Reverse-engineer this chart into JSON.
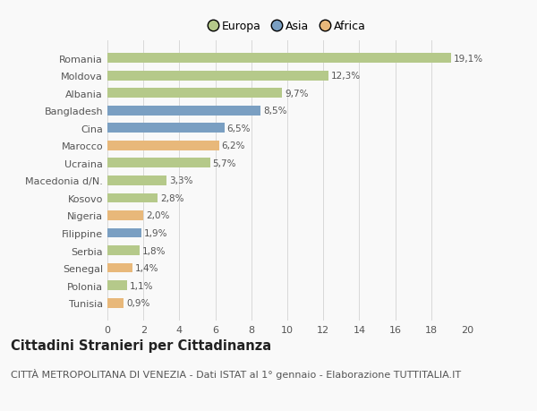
{
  "categories": [
    "Tunisia",
    "Polonia",
    "Senegal",
    "Serbia",
    "Filippine",
    "Nigeria",
    "Kosovo",
    "Macedonia d/N.",
    "Ucraina",
    "Marocco",
    "Cina",
    "Bangladesh",
    "Albania",
    "Moldova",
    "Romania"
  ],
  "values": [
    0.9,
    1.1,
    1.4,
    1.8,
    1.9,
    2.0,
    2.8,
    3.3,
    5.7,
    6.2,
    6.5,
    8.5,
    9.7,
    12.3,
    19.1
  ],
  "labels": [
    "0,9%",
    "1,1%",
    "1,4%",
    "1,8%",
    "1,9%",
    "2,0%",
    "2,8%",
    "3,3%",
    "5,7%",
    "6,2%",
    "6,5%",
    "8,5%",
    "9,7%",
    "12,3%",
    "19,1%"
  ],
  "colors": [
    "#e8b87a",
    "#b5c98a",
    "#e8b87a",
    "#b5c98a",
    "#7a9fc2",
    "#e8b87a",
    "#b5c98a",
    "#b5c98a",
    "#b5c98a",
    "#e8b87a",
    "#7a9fc2",
    "#7a9fc2",
    "#b5c98a",
    "#b5c98a",
    "#b5c98a"
  ],
  "legend_labels": [
    "Europa",
    "Asia",
    "Africa"
  ],
  "legend_colors": [
    "#b5c98a",
    "#7a9fc2",
    "#e8b87a"
  ],
  "title": "Cittadini Stranieri per Cittadinanza",
  "subtitle": "CITTÀ METROPOLITANA DI VENEZIA - Dati ISTAT al 1° gennaio - Elaborazione TUTTITALIA.IT",
  "xlim": [
    0,
    20
  ],
  "xticks": [
    0,
    2,
    4,
    6,
    8,
    10,
    12,
    14,
    16,
    18,
    20
  ],
  "background_color": "#f9f9f9",
  "grid_color": "#d8d8d8",
  "bar_height": 0.55,
  "title_fontsize": 10.5,
  "subtitle_fontsize": 8.0,
  "tick_fontsize": 8.0,
  "value_label_fontsize": 7.5,
  "legend_fontsize": 9.0
}
